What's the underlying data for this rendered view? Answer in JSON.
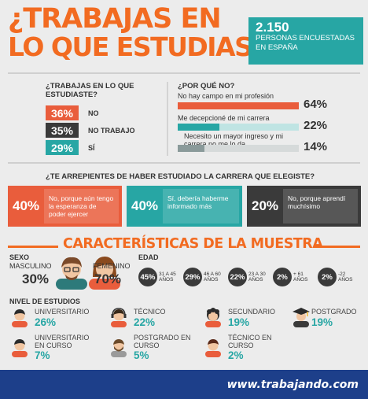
{
  "header": {
    "title_line1": "¿TRABAJAS EN",
    "title_line2": "LO QUE ESTUDIASTE?",
    "count": "2.150",
    "count_text": "PERSONAS ENCUESTADAS EN ESPAÑA"
  },
  "q1": {
    "title": "¿TRABAJAS EN LO QUE ESTUDIASTE?",
    "rows": [
      {
        "pct": "36%",
        "label": "NO",
        "color": "#e95d3c"
      },
      {
        "pct": "35%",
        "label": "NO TRABAJO",
        "color": "#3a3a3a"
      },
      {
        "pct": "29%",
        "label": "SÍ",
        "color": "#27a6a4"
      }
    ]
  },
  "q2": {
    "title": "¿POR QUÉ NO?",
    "rows": [
      {
        "label": "No hay campo en mi profesión",
        "pct": "64%",
        "value": 64,
        "color": "#e95d3c"
      },
      {
        "label": "Me decepcioné de mi carrera",
        "pct": "22%",
        "value": 22,
        "color": "#27a6a4"
      },
      {
        "label": "Necesito un mayor ingreso y mi carrera no me lo da",
        "pct": "14%",
        "value": 14,
        "color": "#8a9a9a"
      }
    ]
  },
  "q3": {
    "title": "¿TE ARREPIENTES DE HABER ESTUDIADO LA CARRERA QUE ELEGISTE?",
    "boxes": [
      {
        "pct": "40%",
        "text": "No, porque aún tengo la esperanza de poder ejercer",
        "color": "#e95d3c"
      },
      {
        "pct": "40%",
        "text": "Sí, debería haberme informado más",
        "color": "#27a6a4"
      },
      {
        "pct": "20%",
        "text": "No, porque aprendí muchísimo",
        "color": "#3a3a3a"
      }
    ]
  },
  "sample": {
    "title": "CARACTERÍSTICAS DE LA MUESTRA",
    "sex": {
      "heading": "SEXO",
      "male_label": "MASCULINO",
      "male_pct": "30%",
      "female_label": "FEMENINO",
      "female_pct": "70%"
    },
    "age": {
      "heading": "EDAD",
      "groups": [
        {
          "pct": "45%",
          "label": "31 A 45 AÑOS"
        },
        {
          "pct": "29%",
          "label": "46 A 60 AÑOS"
        },
        {
          "pct": "22%",
          "label": "23 A 30 AÑOS"
        },
        {
          "pct": "2%",
          "label": "+ 61 AÑOS"
        },
        {
          "pct": "2%",
          "label": "-22 AÑOS"
        }
      ]
    },
    "education": {
      "heading": "NIVEL DE ESTUDIOS",
      "levels": [
        {
          "name": "UNIVERSITARIO",
          "pct": "26%",
          "icon": "student-icon"
        },
        {
          "name": "TÉCNICO",
          "pct": "22%",
          "icon": "headset-technician-icon"
        },
        {
          "name": "SECUNDARIO",
          "pct": "19%",
          "icon": "curly-hair-student-icon"
        },
        {
          "name": "POSTGRADO",
          "pct": "19%",
          "icon": "graduate-cap-icon"
        },
        {
          "name": "UNIVERSITARIO EN CURSO",
          "pct": "7%",
          "icon": "student-icon"
        },
        {
          "name": "POSTGRADO EN CURSO",
          "pct": "5%",
          "icon": "bearded-student-icon"
        },
        {
          "name": "TÉCNICO EN CURSO",
          "pct": "2%",
          "icon": "student-icon"
        }
      ]
    }
  },
  "footer": {
    "url": "www.trabajando.com"
  }
}
